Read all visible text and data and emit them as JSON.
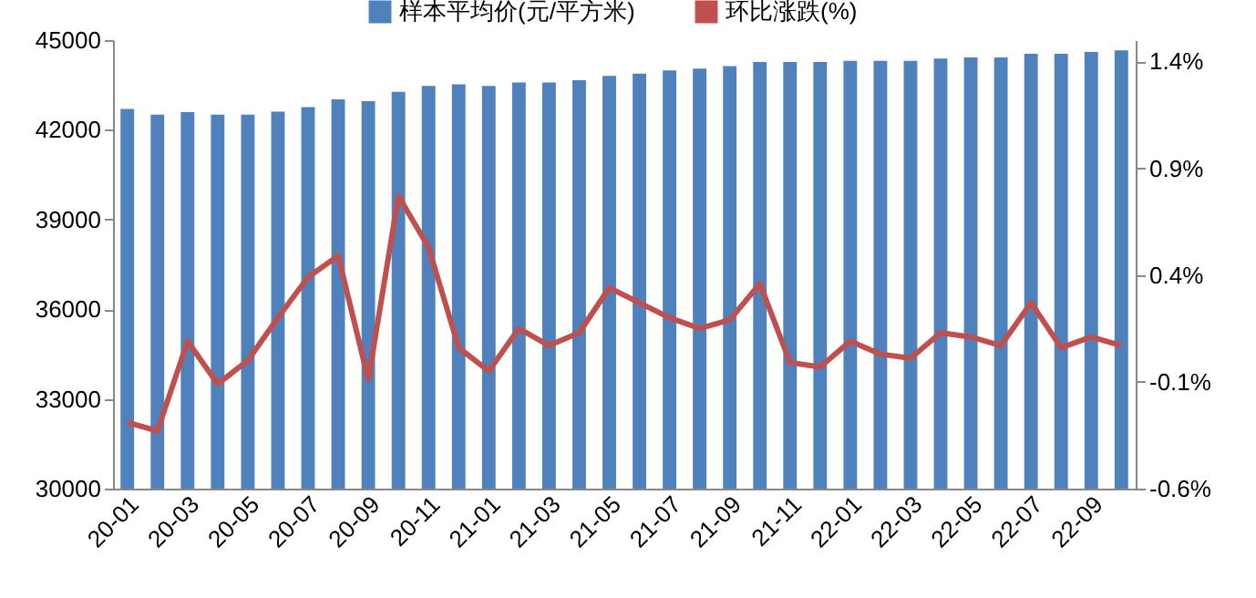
{
  "chart_data": {
    "type": "bar",
    "categories": [
      "20-01",
      null,
      "20-03",
      null,
      "20-05",
      null,
      "20-07",
      null,
      "20-09",
      null,
      "20-11",
      null,
      "21-01",
      null,
      "21-03",
      null,
      "21-05",
      null,
      "21-07",
      null,
      "21-09",
      null,
      "21-11",
      null,
      "22-01",
      null,
      "22-03",
      null,
      "22-05",
      null,
      "22-07",
      null,
      "22-09",
      null
    ],
    "series": [
      {
        "name": "样本平均价(元/平方米)",
        "color": "#4f81bd",
        "values": [
          42700,
          42510,
          42590,
          42510,
          42510,
          42610,
          42760,
          43020,
          42960,
          43270,
          43470,
          43520,
          43470,
          43580,
          43580,
          43660,
          43800,
          43880,
          43990,
          44050,
          44130,
          44270,
          44270,
          44270,
          44310,
          44310,
          44310,
          44380,
          44420,
          44420,
          44540,
          44540,
          44600,
          44660
        ]
      },
      {
        "name": "环比涨跌(%)",
        "type": "line",
        "axis": "y2",
        "color": "#c0504d",
        "values": [
          -0.29,
          -0.33,
          0.09,
          -0.11,
          0.0,
          0.2,
          0.39,
          0.49,
          -0.09,
          0.77,
          0.53,
          0.06,
          -0.05,
          0.15,
          0.07,
          0.13,
          0.34,
          0.27,
          0.2,
          0.15,
          0.19,
          0.36,
          -0.01,
          -0.03,
          0.09,
          0.03,
          0.01,
          0.13,
          0.11,
          0.07,
          0.27,
          0.06,
          0.11,
          0.07
        ]
      }
    ],
    "ylim": [
      30000,
      45000
    ],
    "yticks": [
      30000,
      33000,
      36000,
      39000,
      42000,
      45000
    ],
    "y2lim": [
      -0.6,
      1.5
    ],
    "y2ticks": [
      {
        "value": -0.6,
        "label": "-0.6%"
      },
      {
        "value": -0.1,
        "label": "-0.1%"
      },
      {
        "value": 0.4,
        "label": "0.4%"
      },
      {
        "value": 0.9,
        "label": "0.9%"
      },
      {
        "value": 1.4,
        "label": "1.4%"
      }
    ],
    "grid": false,
    "legend": "top",
    "marker": "none",
    "line_style": "solid"
  }
}
